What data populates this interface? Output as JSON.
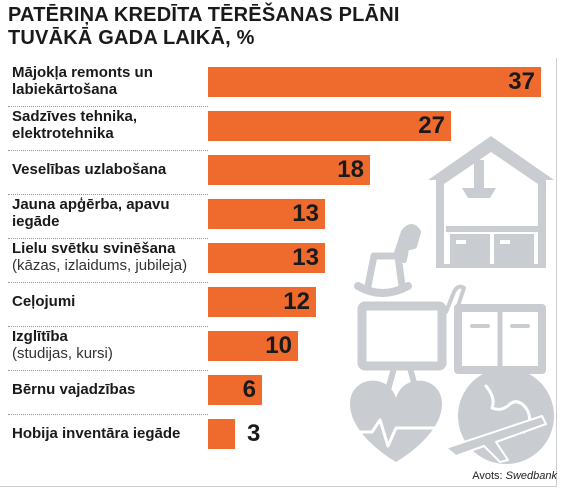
{
  "title": "PATĒRIŅA KREDĪTA TĒRĒŠANAS PLĀNI TUVĀKĀ GADA LAIKĀ, %",
  "source_label": "Avots:",
  "source_name": "Swedbank",
  "colors": {
    "bar": "#ef6b2d",
    "illustration": "#c9ccd0"
  },
  "chart_data": {
    "type": "bar",
    "orientation": "horizontal",
    "title": "PATĒRIŅA KREDĪTA TĒRĒŠANAS PLĀNI TUVĀKĀ GADA LAIKĀ, %",
    "unit": "%",
    "xlim": [
      0,
      37
    ],
    "grid": false,
    "categories": [
      {
        "label": "Mājokļa remonts un labiekārtošana",
        "sub": ""
      },
      {
        "label": "Sadzīves tehnika, elektrotehnika",
        "sub": ""
      },
      {
        "label": "Veselības uzlabošana",
        "sub": ""
      },
      {
        "label": "Jauna apģērba, apavu iegāde",
        "sub": ""
      },
      {
        "label": "Lielu svētku svinēšana",
        "sub": "(kāzas, izlaidums, jubileja)"
      },
      {
        "label": "Ceļojumi",
        "sub": ""
      },
      {
        "label": "Izglītība",
        "sub": "(studijas, kursi)"
      },
      {
        "label": "Bērnu vajadzības",
        "sub": ""
      },
      {
        "label": "Hobija inventāra iegāde",
        "sub": ""
      }
    ],
    "values": [
      37,
      27,
      18,
      13,
      13,
      12,
      10,
      6,
      3
    ]
  },
  "illustration": {
    "icons": [
      "house-icon",
      "rocking-horse-icon",
      "kitchen-cabinet-icon",
      "monitor-icon",
      "cabinet-icon",
      "paperclip-icon",
      "heart-icon",
      "heartbeat-icon",
      "globe-icon",
      "airplane-icon"
    ]
  }
}
